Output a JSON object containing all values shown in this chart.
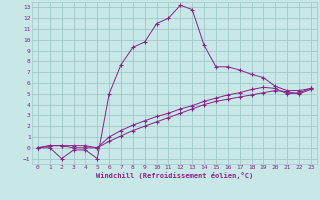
{
  "bg_color": "#c8e8e8",
  "line_color": "#882288",
  "grid_color": "#a0c8c8",
  "xlim": [
    -0.5,
    23.5
  ],
  "ylim": [
    -1.5,
    13.5
  ],
  "xticks": [
    0,
    1,
    2,
    3,
    4,
    5,
    6,
    7,
    8,
    9,
    10,
    11,
    12,
    13,
    14,
    15,
    16,
    17,
    18,
    19,
    20,
    21,
    22,
    23
  ],
  "yticks": [
    -1,
    0,
    1,
    2,
    3,
    4,
    5,
    6,
    7,
    8,
    9,
    10,
    11,
    12,
    13
  ],
  "xlabel": "Windchill (Refroidissement éolien,°C)",
  "line1_x": [
    0,
    1,
    2,
    3,
    4,
    5,
    6,
    7,
    8,
    9,
    10,
    11,
    12,
    13,
    14,
    15,
    16,
    17,
    18,
    19,
    20,
    21,
    22,
    23
  ],
  "line1_y": [
    0.0,
    0.0,
    -1.0,
    -0.2,
    -0.2,
    -1.0,
    5.0,
    7.7,
    9.3,
    9.8,
    11.5,
    12.0,
    13.2,
    12.8,
    9.5,
    7.5,
    7.5,
    7.2,
    6.8,
    6.5,
    5.7,
    5.3,
    5.3,
    5.5
  ],
  "line2_x": [
    0,
    1,
    2,
    3,
    4,
    5,
    6,
    7,
    8,
    9,
    10,
    11,
    12,
    13,
    14,
    15,
    16,
    17,
    18,
    19,
    20,
    21,
    22,
    23
  ],
  "line2_y": [
    0.0,
    0.2,
    0.2,
    0.0,
    0.0,
    0.0,
    1.0,
    1.6,
    2.1,
    2.5,
    2.9,
    3.2,
    3.6,
    3.9,
    4.3,
    4.6,
    4.9,
    5.1,
    5.4,
    5.6,
    5.5,
    5.0,
    5.1,
    5.5
  ],
  "line3_x": [
    0,
    1,
    2,
    3,
    4,
    5,
    6,
    7,
    8,
    9,
    10,
    11,
    12,
    13,
    14,
    15,
    16,
    17,
    18,
    19,
    20,
    21,
    22,
    23
  ],
  "line3_y": [
    0.0,
    0.2,
    0.2,
    0.2,
    0.2,
    0.0,
    0.6,
    1.1,
    1.6,
    2.0,
    2.4,
    2.8,
    3.2,
    3.6,
    4.0,
    4.3,
    4.5,
    4.7,
    4.9,
    5.1,
    5.3,
    5.2,
    5.0,
    5.4
  ]
}
